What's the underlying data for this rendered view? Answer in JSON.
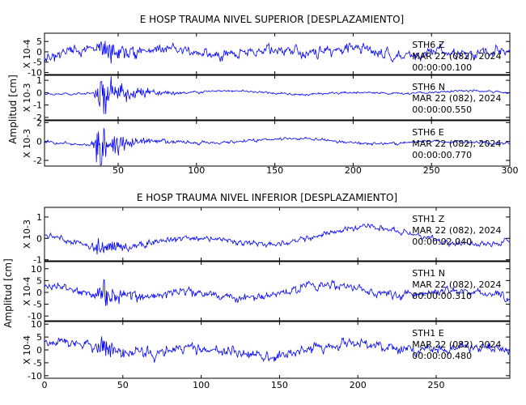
{
  "chart_data": [
    {
      "type": "line",
      "title": "E HOSP TRAUMA NIVEL SUPERIOR [DESPLAZAMIENTO]",
      "ylabel": "Amplitud [cm]",
      "xlim": [
        3,
        300
      ],
      "xticks": [
        50,
        100,
        150,
        200,
        250,
        300
      ],
      "line_color": "#0000ff",
      "series": [
        {
          "multiplier": "X 10-4",
          "ylim": [
            -11,
            9
          ],
          "yticks": [
            5,
            0,
            -5,
            -10
          ],
          "ytick_labels": [
            "5",
            "0",
            "-5",
            "-10"
          ],
          "station": "STH6   Z",
          "date": "MAR 22 (082), 2024",
          "time": "00:00:00.100",
          "seed": 11,
          "n": 700,
          "noise": 3.4,
          "swell": 2.2,
          "burst": 5.0,
          "burst_x": 40,
          "spike": 0,
          "swell_freq": 0.08
        },
        {
          "multiplier": "X 10-3",
          "ylim": [
            -2.2,
            1.4
          ],
          "yticks": [
            1,
            0,
            -1,
            -2
          ],
          "ytick_labels": [
            "1",
            "0",
            "-1",
            "-2"
          ],
          "station": "STH6   N",
          "date": "MAR 22 (082), 2024",
          "time": "00:00:00.550",
          "seed": 29,
          "n": 700,
          "noise": 0.12,
          "swell": 0.15,
          "burst": 1.3,
          "burst_x": 40,
          "spike": -1.2,
          "swell_freq": 0.06
        },
        {
          "multiplier": "X 10-3",
          "ylim": [
            -2.6,
            2.2
          ],
          "yticks": [
            2,
            0,
            -2
          ],
          "ytick_labels": [
            "2",
            "0",
            "-2"
          ],
          "station": "STH6   E",
          "date": "MAR 22 (082), 2024",
          "time": "00:00:00.770",
          "seed": 47,
          "n": 700,
          "noise": 0.2,
          "swell": 0.35,
          "burst": 1.6,
          "burst_x": 38,
          "spike": -2.0,
          "swell_freq": 0.05
        }
      ]
    },
    {
      "type": "line",
      "title": "E HOSP TRAUMA NIVEL INFERIOR [DESPLAZAMIENTO]",
      "ylabel": "Amplitud [cm]",
      "xlim": [
        0,
        297
      ],
      "xticks": [
        0,
        50,
        100,
        150,
        200,
        250
      ],
      "line_color": "#0000ff",
      "series": [
        {
          "multiplier": "X 10-3",
          "ylim": [
            -1.05,
            1.45
          ],
          "yticks": [
            1,
            0,
            -1
          ],
          "ytick_labels": [
            "1",
            "0",
            "-1"
          ],
          "station": "STH1   Z",
          "date": "MAR 22 (082), 2024",
          "time": "00:00:02.040",
          "seed": 53,
          "n": 700,
          "noise": 0.18,
          "swell": 0.55,
          "burst": 0.35,
          "burst_x": 35,
          "spike": 0,
          "swell_freq": 0.04
        },
        {
          "multiplier": "X 10-4",
          "ylim": [
            -12,
            13
          ],
          "yticks": [
            10,
            5,
            0,
            -5,
            -10
          ],
          "ytick_labels": [
            "10",
            "5",
            "0",
            "-5",
            "-10"
          ],
          "station": "STH1   N",
          "date": "MAR 22 (082), 2024",
          "time": "00:00:00.310",
          "seed": 71,
          "n": 700,
          "noise": 2.3,
          "swell": 3.5,
          "burst": 4.0,
          "burst_x": 37,
          "spike": 9,
          "swell_freq": 0.05
        },
        {
          "multiplier": "X 10-4",
          "ylim": [
            -11,
            11
          ],
          "yticks": [
            10,
            5,
            0,
            -5,
            -10
          ],
          "ytick_labels": [
            "10",
            "5",
            "0",
            "-5",
            "-10"
          ],
          "station": "STH1   E",
          "date": "MAR 22 (082), 2024",
          "time": "00:00:00.480",
          "seed": 89,
          "n": 700,
          "noise": 2.8,
          "swell": 2.8,
          "burst": 3.0,
          "burst_x": 36,
          "spike": 0,
          "swell_freq": 0.05
        }
      ]
    }
  ]
}
